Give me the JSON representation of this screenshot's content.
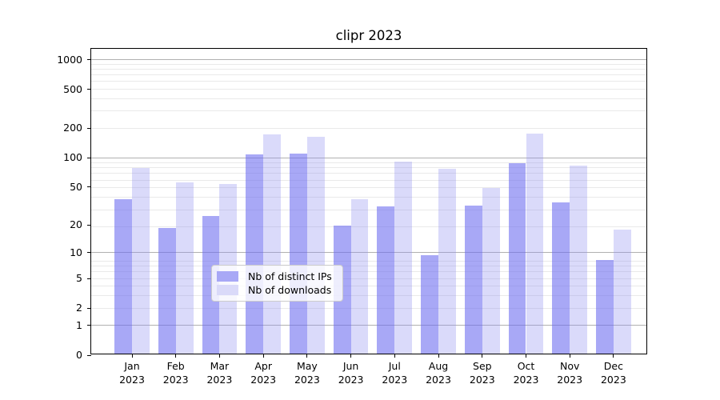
{
  "chart_data": {
    "type": "bar",
    "title": "clipr 2023",
    "categories": [
      "Jan",
      "Feb",
      "Mar",
      "Apr",
      "May",
      "Jun",
      "Jul",
      "Aug",
      "Sep",
      "Oct",
      "Nov",
      "Dec"
    ],
    "category_year_suffix": "2023",
    "series": [
      {
        "name": "Nb of distinct IPs",
        "values": [
          36,
          18,
          24,
          105,
          107,
          19,
          30,
          9,
          31,
          85,
          33,
          8
        ],
        "fill_rgba": "rgba(110,110,240,0.6)",
        "rendered_hex": "#a8a8f6"
      },
      {
        "name": "Nb of downloads",
        "values": [
          75,
          54,
          52,
          167,
          159,
          36,
          88,
          74,
          47,
          170,
          80,
          17
        ],
        "fill_rgba": "rgba(150,150,240,0.35)",
        "rendered_hex": "#dadaf9"
      }
    ],
    "yscale": "log1p",
    "y_tick_labels": [
      "0",
      "1",
      "2",
      "5",
      "10",
      "20",
      "50",
      "100",
      "200",
      "500",
      "1000"
    ],
    "y_tick_values": [
      0,
      1,
      2,
      5,
      10,
      20,
      50,
      100,
      200,
      500,
      1000
    ],
    "y_major_gridline_values": [
      1,
      10,
      100,
      1000
    ],
    "ylim": [
      0,
      1300
    ],
    "grid": true,
    "legend_position": "lower-center"
  }
}
